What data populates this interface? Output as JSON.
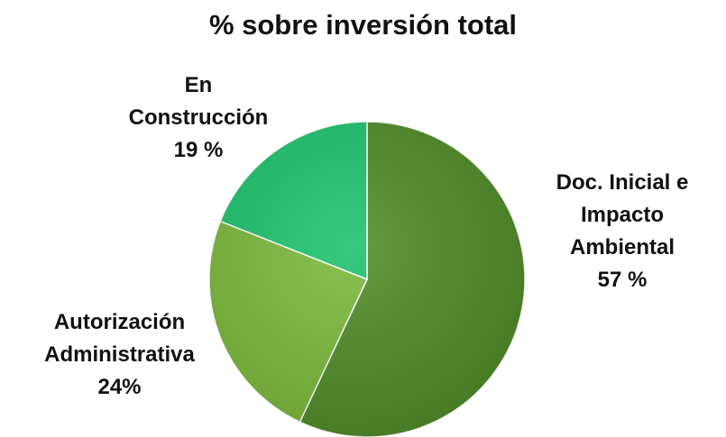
{
  "chart_data": {
    "type": "pie",
    "title": "% sobre inversión total",
    "categories": [
      "Doc. Inicial e Impacto Ambiental",
      "Autorización Administrativa",
      "En Construcción"
    ],
    "values": [
      57,
      24,
      19
    ],
    "value_labels": [
      "57 %",
      "24%",
      "19 %"
    ],
    "colors": [
      "#4f8a27",
      "#7bb83b",
      "#1cc26c"
    ]
  }
}
